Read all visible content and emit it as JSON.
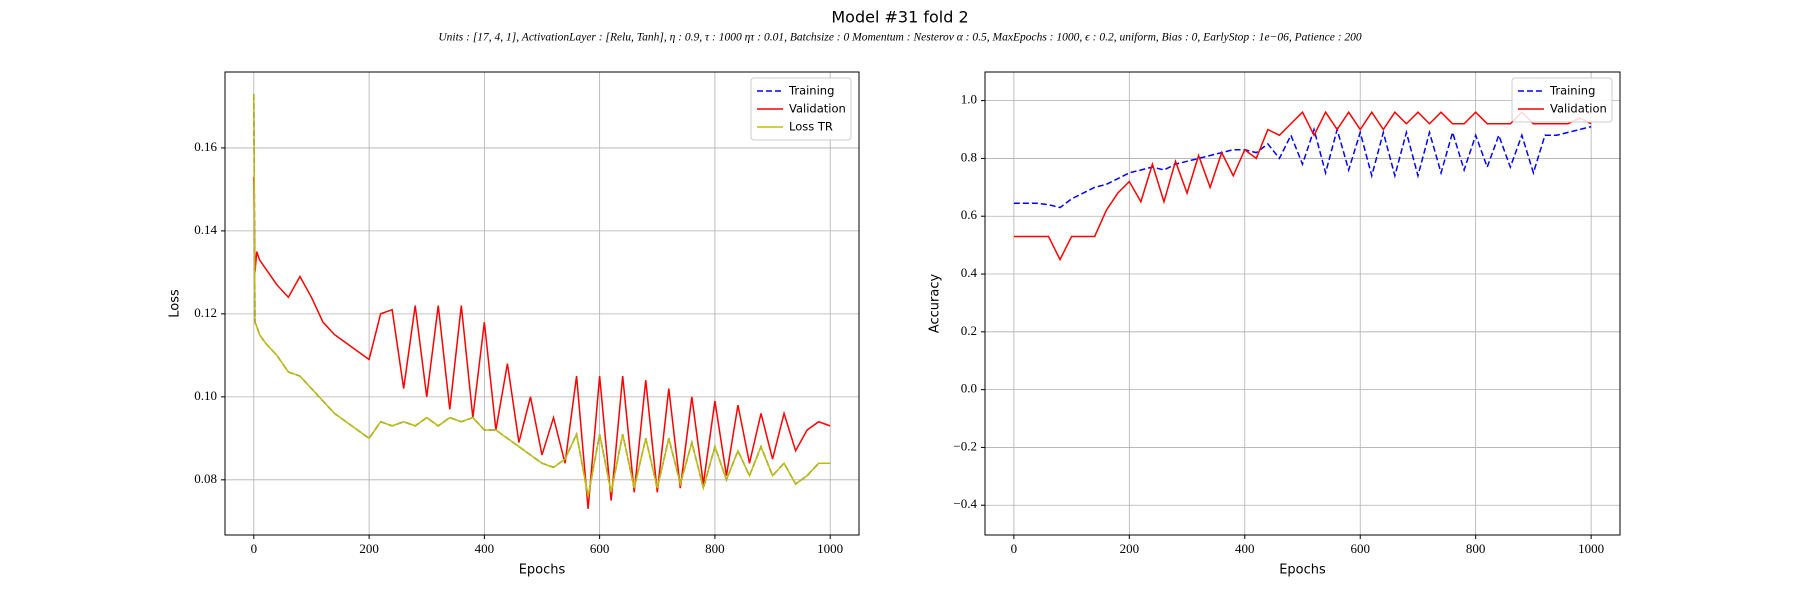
{
  "title": "Model #31 fold 2",
  "subtitle": "Units : [17, 4, 1], ActivationLayer : [Relu, Tanh], η : 0.9, τ : 1000 ητ : 0.01, Batchsize : 0 Momentum : Nesterov α : 0.5, MaxEpochs : 1000, ϵ : 0.2, uniform, Bias : 0, EarlyStop : 1e−06, Patience : 200",
  "chart_data": [
    {
      "type": "line",
      "xlabel": "Epochs",
      "ylabel": "Loss",
      "grid": true,
      "legend": "upper right",
      "xlim": [
        -50,
        1050
      ],
      "ylim": [
        0.0667,
        0.1783
      ],
      "xticks": [
        0,
        200,
        400,
        600,
        800,
        1000
      ],
      "yticks": [
        0.08,
        {
          "value": 0.1,
          "label": "0.10"
        },
        0.12,
        0.14,
        0.16
      ],
      "x": [
        0,
        2,
        5,
        10,
        20,
        40,
        60,
        80,
        100,
        120,
        140,
        160,
        180,
        200,
        220,
        240,
        260,
        280,
        300,
        320,
        340,
        360,
        380,
        400,
        420,
        440,
        460,
        480,
        500,
        520,
        540,
        560,
        580,
        600,
        620,
        640,
        660,
        680,
        700,
        720,
        740,
        760,
        780,
        800,
        820,
        840,
        860,
        880,
        900,
        920,
        940,
        960,
        980,
        1000
      ],
      "series": [
        {
          "name": "Training",
          "color": "#0000ff",
          "linestyle": "dashed",
          "values": [
            0.173,
            0.118,
            0.117,
            0.115,
            0.113,
            0.11,
            0.106,
            0.105,
            0.102,
            0.099,
            0.096,
            0.094,
            0.092,
            0.09,
            0.094,
            0.093,
            0.094,
            0.093,
            0.095,
            0.093,
            0.095,
            0.094,
            0.095,
            0.092,
            0.092,
            0.09,
            0.088,
            0.086,
            0.084,
            0.083,
            0.085,
            0.091,
            0.076,
            0.091,
            0.077,
            0.091,
            0.078,
            0.09,
            0.078,
            0.09,
            0.079,
            0.089,
            0.078,
            0.088,
            0.08,
            0.087,
            0.081,
            0.088,
            0.081,
            0.084,
            0.079,
            0.081,
            0.084,
            0.084
          ]
        },
        {
          "name": "Validation",
          "color": "#ff0000",
          "linestyle": "solid",
          "values": [
            0.153,
            0.13,
            0.135,
            0.133,
            0.131,
            0.127,
            0.124,
            0.129,
            0.124,
            0.118,
            0.115,
            0.113,
            0.111,
            0.109,
            0.12,
            0.121,
            0.102,
            0.122,
            0.1,
            0.122,
            0.097,
            0.122,
            0.095,
            0.118,
            0.092,
            0.108,
            0.089,
            0.1,
            0.086,
            0.095,
            0.084,
            0.105,
            0.073,
            0.105,
            0.075,
            0.105,
            0.077,
            0.104,
            0.077,
            0.102,
            0.078,
            0.1,
            0.079,
            0.099,
            0.081,
            0.098,
            0.084,
            0.096,
            0.085,
            0.096,
            0.087,
            0.092,
            0.094,
            0.093
          ]
        },
        {
          "name": "Loss TR",
          "color": "#bfbf00",
          "linestyle": "solid",
          "values": [
            0.173,
            0.118,
            0.117,
            0.115,
            0.113,
            0.11,
            0.106,
            0.105,
            0.102,
            0.099,
            0.096,
            0.094,
            0.092,
            0.09,
            0.094,
            0.093,
            0.094,
            0.093,
            0.095,
            0.093,
            0.095,
            0.094,
            0.095,
            0.092,
            0.092,
            0.09,
            0.088,
            0.086,
            0.084,
            0.083,
            0.085,
            0.091,
            0.076,
            0.091,
            0.077,
            0.091,
            0.078,
            0.09,
            0.078,
            0.09,
            0.079,
            0.089,
            0.078,
            0.088,
            0.08,
            0.087,
            0.081,
            0.088,
            0.081,
            0.084,
            0.079,
            0.081,
            0.084,
            0.084
          ]
        }
      ]
    },
    {
      "type": "line",
      "xlabel": "Epochs",
      "ylabel": "Accuracy",
      "grid": true,
      "legend": "upper right",
      "xlim": [
        -50,
        1050
      ],
      "ylim": [
        -0.503,
        1.099
      ],
      "xticks": [
        0,
        200,
        400,
        600,
        800,
        1000
      ],
      "yticks": [
        {
          "value": -0.4,
          "label": "−0.4"
        },
        {
          "value": -0.2,
          "label": "−0.2"
        },
        {
          "value": 0,
          "label": "0.0"
        },
        0.2,
        0.4,
        0.6,
        0.8,
        {
          "value": 1,
          "label": "1.0"
        }
      ],
      "x": [
        0,
        2,
        5,
        10,
        20,
        40,
        60,
        80,
        100,
        120,
        140,
        160,
        180,
        200,
        220,
        240,
        260,
        280,
        300,
        320,
        340,
        360,
        380,
        400,
        420,
        440,
        460,
        480,
        500,
        520,
        540,
        560,
        580,
        600,
        620,
        640,
        660,
        680,
        700,
        720,
        740,
        760,
        780,
        800,
        820,
        840,
        860,
        880,
        900,
        920,
        940,
        960,
        980,
        1000
      ],
      "series": [
        {
          "name": "Training",
          "color": "#0000ff",
          "linestyle": "dashed",
          "values": [
            0.645,
            0.645,
            0.645,
            0.645,
            0.645,
            0.645,
            0.64,
            0.63,
            0.66,
            0.68,
            0.7,
            0.71,
            0.73,
            0.75,
            0.76,
            0.77,
            0.76,
            0.78,
            0.79,
            0.8,
            0.81,
            0.82,
            0.83,
            0.83,
            0.82,
            0.85,
            0.8,
            0.88,
            0.78,
            0.9,
            0.75,
            0.9,
            0.76,
            0.89,
            0.74,
            0.89,
            0.74,
            0.89,
            0.74,
            0.89,
            0.75,
            0.89,
            0.76,
            0.88,
            0.77,
            0.88,
            0.77,
            0.88,
            0.75,
            0.88,
            0.88,
            0.89,
            0.9,
            0.91
          ]
        },
        {
          "name": "Validation",
          "color": "#ff0000",
          "linestyle": "solid",
          "values": [
            0.53,
            0.53,
            0.53,
            0.53,
            0.53,
            0.53,
            0.53,
            0.45,
            0.53,
            0.53,
            0.53,
            0.62,
            0.68,
            0.72,
            0.65,
            0.78,
            0.65,
            0.79,
            0.68,
            0.81,
            0.7,
            0.82,
            0.74,
            0.83,
            0.8,
            0.9,
            0.88,
            0.92,
            0.96,
            0.88,
            0.96,
            0.9,
            0.96,
            0.9,
            0.96,
            0.9,
            0.96,
            0.92,
            0.96,
            0.92,
            0.96,
            0.92,
            0.92,
            0.96,
            0.92,
            0.92,
            0.92,
            0.96,
            0.92,
            0.92,
            0.92,
            0.92,
            0.94,
            0.92
          ]
        }
      ]
    }
  ]
}
